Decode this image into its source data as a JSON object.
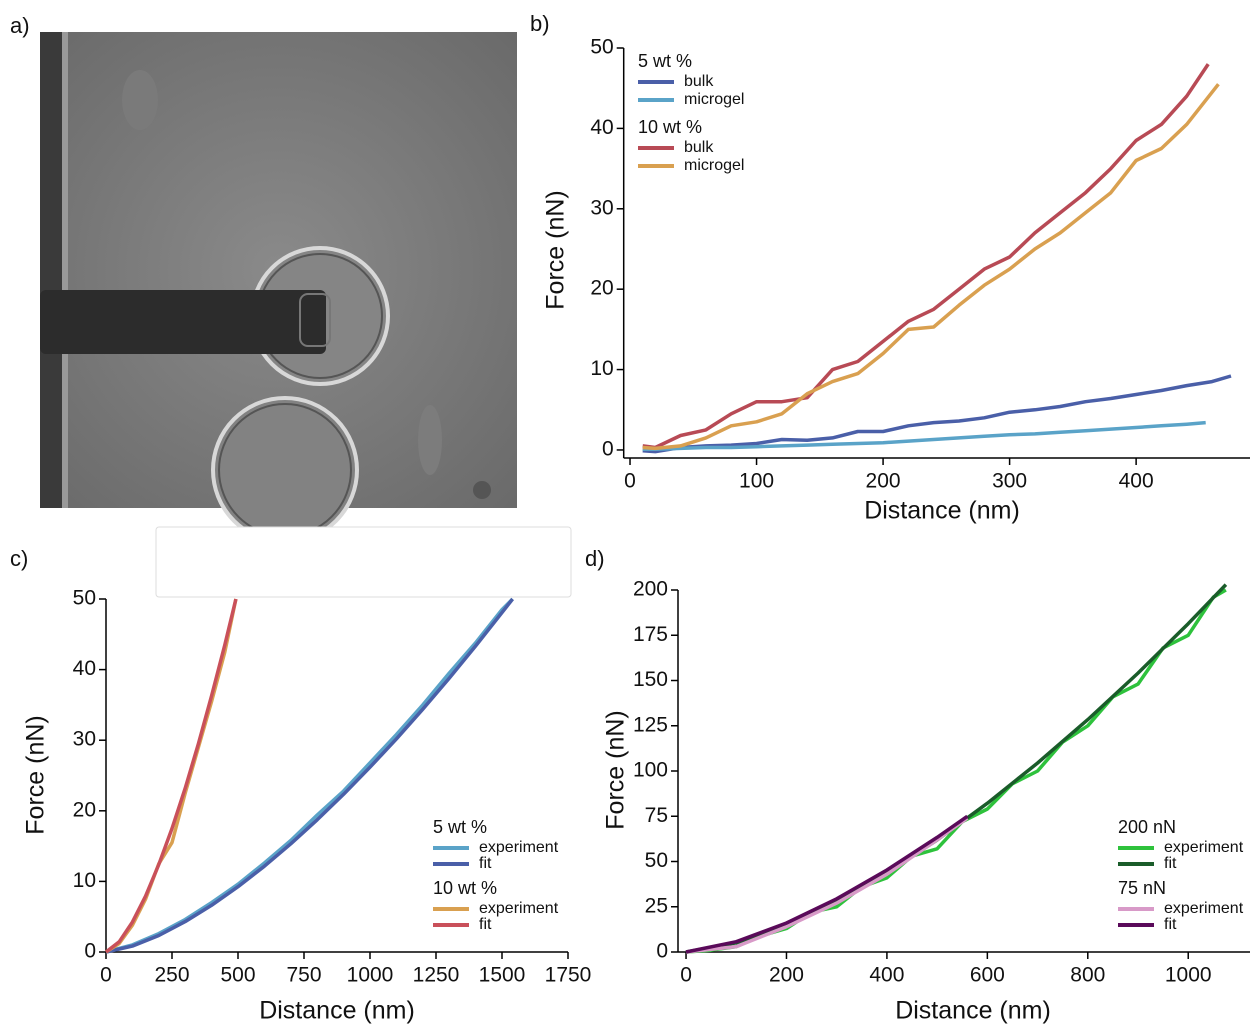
{
  "panel_labels": [
    "a)",
    "b)",
    "c)",
    "d)"
  ],
  "chart_data": [
    {
      "type": "line",
      "xlabel": "Distance (nm)",
      "ylabel": "Force (nN)",
      "xlim": [
        -5,
        490
      ],
      "ylim": [
        -1,
        50
      ],
      "xticks": [
        0,
        100,
        200,
        300,
        400
      ],
      "yticks": [
        0,
        10,
        20,
        30,
        40,
        50
      ],
      "groups": [
        {
          "name": "5 wt %",
          "series": [
            {
              "name": "bulk",
              "color": "#4a5fa8",
              "x": [
                10,
                20,
                40,
                60,
                80,
                100,
                120,
                140,
                160,
                180,
                200,
                220,
                240,
                260,
                280,
                300,
                320,
                340,
                360,
                380,
                400,
                420,
                440,
                460,
                475
              ],
              "values": [
                -0.1,
                -0.2,
                0.3,
                0.5,
                0.6,
                0.8,
                1.3,
                1.2,
                1.5,
                2.3,
                2.3,
                3,
                3.4,
                3.6,
                4,
                4.7,
                5,
                5.4,
                6,
                6.4,
                6.9,
                7.4,
                8,
                8.5,
                9.2
              ]
            },
            {
              "name": "microgel",
              "color": "#5aa3c8",
              "x": [
                10,
                20,
                40,
                60,
                80,
                100,
                120,
                140,
                160,
                180,
                200,
                220,
                240,
                260,
                280,
                300,
                320,
                340,
                360,
                380,
                400,
                420,
                440,
                455
              ],
              "values": [
                0.1,
                0.1,
                0.2,
                0.3,
                0.3,
                0.4,
                0.5,
                0.6,
                0.7,
                0.8,
                0.9,
                1.1,
                1.3,
                1.5,
                1.7,
                1.9,
                2.0,
                2.2,
                2.4,
                2.6,
                2.8,
                3.0,
                3.2,
                3.4
              ]
            }
          ]
        },
        {
          "name": "10 wt %",
          "series": [
            {
              "name": "bulk",
              "color": "#b84a55",
              "x": [
                10,
                20,
                40,
                60,
                80,
                100,
                120,
                140,
                160,
                180,
                200,
                220,
                240,
                260,
                280,
                300,
                320,
                340,
                360,
                380,
                400,
                420,
                440,
                457
              ],
              "values": [
                0.5,
                0.3,
                1.8,
                2.5,
                4.5,
                6,
                6,
                6.5,
                10,
                11,
                13.5,
                16,
                17.5,
                20,
                22.5,
                24,
                27,
                29.5,
                32,
                35,
                38.5,
                40.5,
                44,
                48
              ]
            },
            {
              "name": "microgel",
              "color": "#d9a050",
              "x": [
                10,
                20,
                40,
                60,
                80,
                100,
                120,
                140,
                160,
                180,
                200,
                220,
                240,
                260,
                280,
                300,
                320,
                340,
                360,
                380,
                400,
                420,
                440,
                465
              ],
              "values": [
                0.3,
                0.2,
                0.5,
                1.5,
                3,
                3.5,
                4.5,
                7,
                8.5,
                9.5,
                12,
                15,
                15.3,
                18,
                20.5,
                22.5,
                25,
                27,
                29.5,
                32,
                36,
                37.5,
                40.5,
                45.5
              ]
            }
          ]
        }
      ]
    },
    {
      "type": "line",
      "xlabel": "Distance (nm)",
      "ylabel": "Force (nN)",
      "xlim": [
        0,
        1750
      ],
      "ylim": [
        0,
        50
      ],
      "xticks": [
        0,
        250,
        500,
        750,
        1000,
        1250,
        1500,
        1750
      ],
      "yticks": [
        0,
        10,
        20,
        30,
        40,
        50
      ],
      "groups": [
        {
          "name": "5 wt %",
          "series": [
            {
              "name": "experiment",
              "color": "#5aa3c8",
              "x": [
                0,
                100,
                200,
                300,
                400,
                500,
                600,
                700,
                800,
                900,
                1000,
                1100,
                1200,
                1300,
                1400,
                1500,
                1540
              ],
              "values": [
                0,
                1,
                2.6,
                4.6,
                7,
                9.6,
                12.6,
                15.8,
                19.4,
                22.8,
                26.8,
                30.8,
                35,
                39.5,
                43.8,
                48.5,
                50
              ]
            },
            {
              "name": "fit",
              "color": "#4a5fa8",
              "x": [
                0,
                100,
                200,
                300,
                400,
                500,
                600,
                700,
                800,
                900,
                1000,
                1100,
                1200,
                1300,
                1400,
                1500,
                1540
              ],
              "values": [
                0,
                0.83,
                2.34,
                4.3,
                6.62,
                9.25,
                12.16,
                15.32,
                18.72,
                22.34,
                26.17,
                30.18,
                34.39,
                38.78,
                43.34,
                48.07,
                50
              ]
            }
          ]
        },
        {
          "name": "10 wt %",
          "series": [
            {
              "name": "experiment",
              "color": "#d9a050",
              "x": [
                0,
                50,
                100,
                150,
                200,
                250,
                300,
                350,
                400,
                450,
                492
              ],
              "values": [
                0,
                1.2,
                3.8,
                7.5,
                12.5,
                15.5,
                22.5,
                29,
                35.5,
                42.5,
                50
              ]
            },
            {
              "name": "fit",
              "color": "#c9505a",
              "x": [
                0,
                50,
                100,
                150,
                200,
                250,
                300,
                350,
                400,
                450,
                492
              ],
              "values": [
                0,
                1.44,
                4.24,
                7.93,
                12.39,
                17.5,
                23.2,
                29.5,
                36.3,
                43.5,
                50
              ]
            }
          ]
        }
      ]
    },
    {
      "type": "line",
      "xlabel": "Distance (nm)",
      "ylabel": "Force (nN)",
      "xlim": [
        -16,
        1123
      ],
      "ylim": [
        0,
        200
      ],
      "xticks": [
        0,
        200,
        400,
        600,
        800,
        1000
      ],
      "yticks": [
        0,
        25,
        50,
        75,
        100,
        125,
        150,
        175,
        200
      ],
      "groups": [
        {
          "name": "200 nN",
          "series": [
            {
              "name": "experiment",
              "color": "#2ec23c",
              "x": [
                0,
                50,
                100,
                150,
                200,
                250,
                300,
                350,
                400,
                450,
                500,
                550,
                600,
                650,
                700,
                750,
                800,
                850,
                900,
                950,
                1000,
                1050,
                1075
              ],
              "values": [
                0,
                1,
                3,
                9,
                13,
                22,
                25,
                36,
                41,
                53,
                57,
                72,
                79,
                93,
                100,
                116,
                125,
                141,
                148,
                168,
                175,
                196,
                200
              ]
            },
            {
              "name": "fit",
              "color": "#1a5c2a",
              "x": [
                0,
                100,
                200,
                300,
                400,
                500,
                600,
                700,
                800,
                900,
                1000,
                1075
              ],
              "values": [
                0,
                5.1,
                15,
                28.1,
                43.8,
                61.9,
                82.2,
                104.4,
                128.4,
                154.1,
                181.4,
                203
              ]
            }
          ]
        },
        {
          "name": "75 nN",
          "series": [
            {
              "name": "experiment",
              "color": "#d89ac8",
              "x": [
                0,
                100,
                200,
                300,
                400,
                500,
                560
              ],
              "values": [
                0,
                3,
                14,
                27,
                43,
                62,
                74
              ]
            },
            {
              "name": "fit",
              "color": "#5a0a5a",
              "x": [
                0,
                100,
                200,
                300,
                400,
                500,
                560
              ],
              "values": [
                0,
                5.7,
                16,
                29.4,
                45.3,
                63.3,
                75
              ]
            }
          ]
        }
      ]
    }
  ]
}
